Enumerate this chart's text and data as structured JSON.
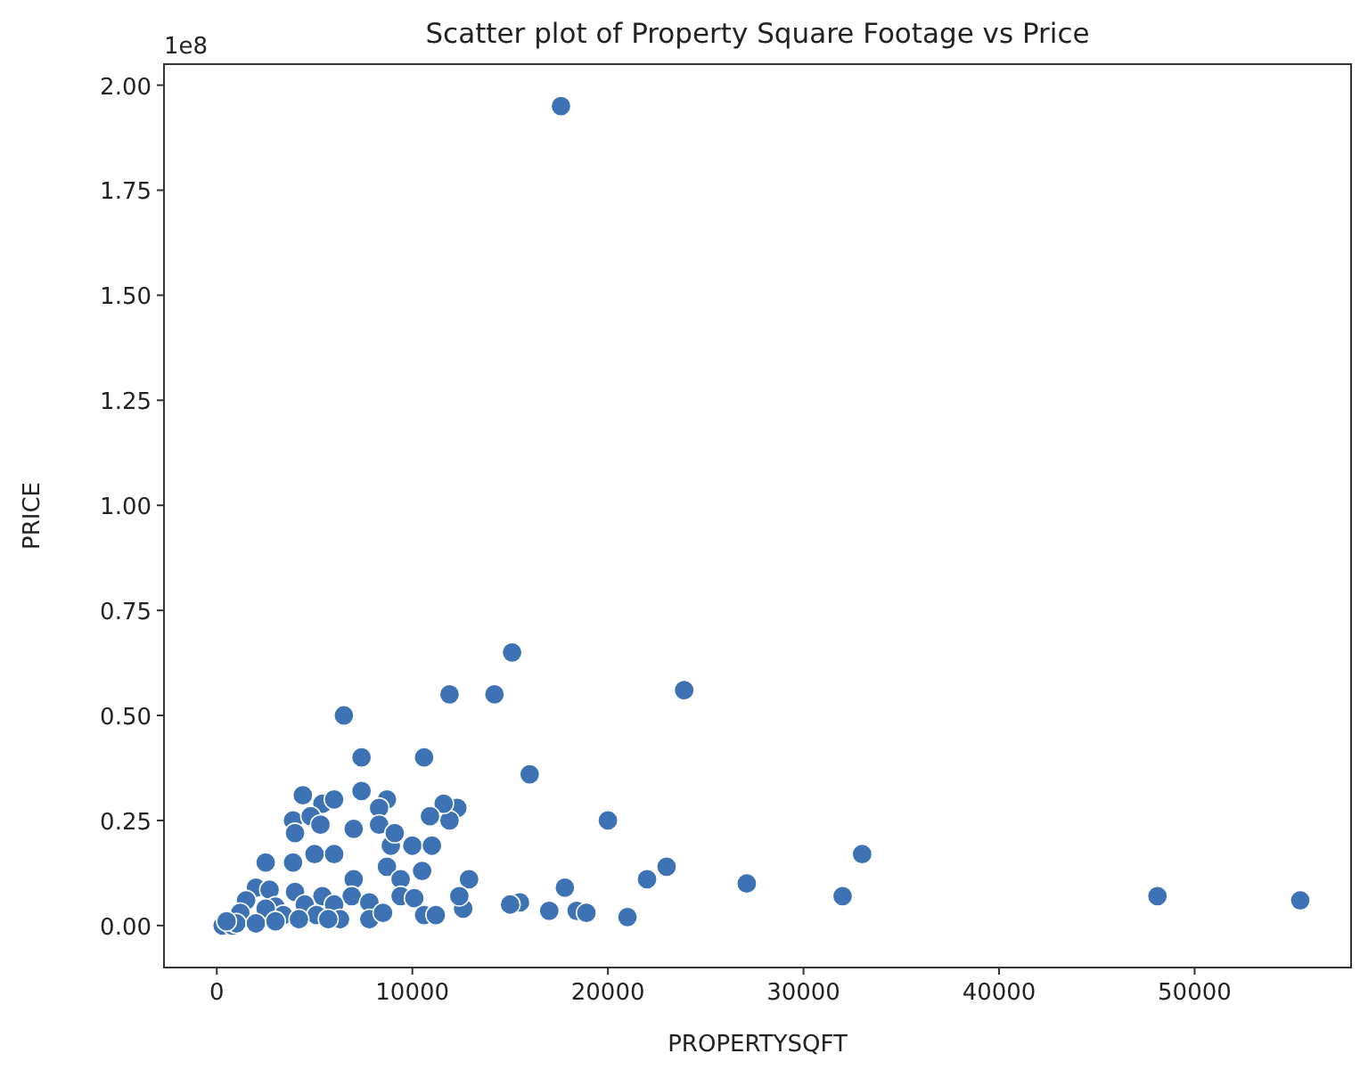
{
  "chart_data": {
    "type": "scatter",
    "title": "Scatter plot of Property Square Footage vs Price",
    "xlabel": "PROPERTYSQFT",
    "ylabel": "PRICE",
    "annotations": [
      "1e8"
    ],
    "marker": "circle",
    "grid": false,
    "xlim": [
      -2700,
      58000
    ],
    "xticks": [
      0,
      10000,
      20000,
      30000,
      40000,
      50000
    ],
    "ylim": [
      -0.1,
      2.05
    ],
    "yticks": [
      {
        "value": 0,
        "label": "0.00"
      },
      {
        "value": 0.25,
        "label": "0.25"
      },
      {
        "value": 0.5,
        "label": "0.50"
      },
      {
        "value": 0.75,
        "label": "0.75"
      },
      {
        "value": 1,
        "label": "1.00"
      },
      {
        "value": 1.25,
        "label": "1.25"
      },
      {
        "value": 1.5,
        "label": "1.50"
      },
      {
        "value": 1.75,
        "label": "1.75"
      },
      {
        "value": 2,
        "label": "2.00"
      }
    ],
    "series": [
      {
        "color": "#3d72b4",
        "x": [
          17600,
          15100,
          23900,
          14200,
          11900,
          6500,
          10600,
          7400,
          16000,
          20000,
          33000,
          23000,
          22000,
          12900,
          27100,
          32000,
          48100,
          55400,
          17800,
          15500,
          15000,
          17000,
          18400,
          18900,
          21000,
          12600,
          12300,
          11900,
          12400,
          7400,
          4400,
          5400,
          6000,
          8700,
          11600,
          3900,
          4800,
          5300,
          7000,
          8300,
          8300,
          10900,
          4000,
          8900,
          10000,
          11000,
          9100,
          2500,
          3900,
          5000,
          6000,
          7000,
          8700,
          10500,
          9400,
          2000,
          2700,
          4000,
          5400,
          6900,
          9400,
          1500,
          3000,
          4500,
          6000,
          7800,
          10100,
          3400,
          5100,
          6300,
          7800,
          10600,
          11200,
          8500,
          1200,
          2500,
          4200,
          5700,
          300,
          800,
          1000,
          500,
          2000,
          3000
        ],
        "values": [
          1.95,
          0.65,
          0.56,
          0.55,
          0.55,
          0.5,
          0.4,
          0.4,
          0.36,
          0.25,
          0.17,
          0.14,
          0.11,
          0.11,
          0.1,
          0.07,
          0.07,
          0.06,
          0.09,
          0.055,
          0.05,
          0.035,
          0.035,
          0.03,
          0.02,
          0.04,
          0.28,
          0.25,
          0.07,
          0.32,
          0.31,
          0.29,
          0.3,
          0.3,
          0.29,
          0.25,
          0.26,
          0.24,
          0.23,
          0.28,
          0.24,
          0.26,
          0.22,
          0.19,
          0.19,
          0.19,
          0.22,
          0.15,
          0.15,
          0.17,
          0.17,
          0.11,
          0.14,
          0.13,
          0.11,
          0.09,
          0.085,
          0.08,
          0.07,
          0.07,
          0.07,
          0.06,
          0.045,
          0.05,
          0.05,
          0.055,
          0.065,
          0.025,
          0.025,
          0.015,
          0.015,
          0.025,
          0.025,
          0.03,
          0.03,
          0.04,
          0.015,
          0.015,
          0,
          0,
          0.005,
          0.01,
          0.005,
          0.01
        ]
      }
    ]
  }
}
